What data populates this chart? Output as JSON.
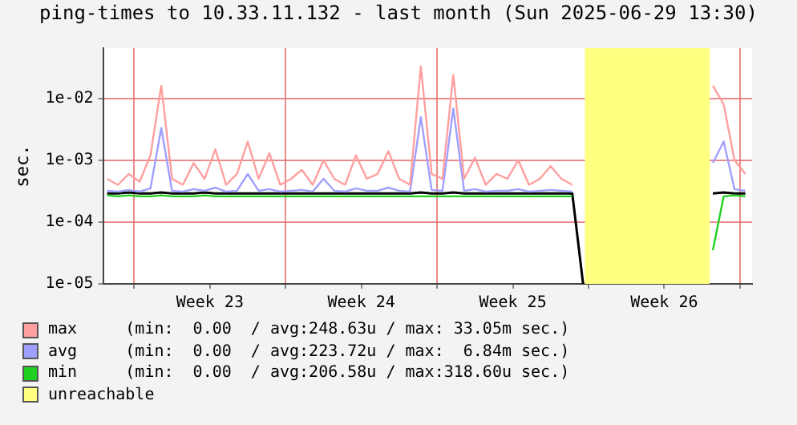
{
  "chart_data": {
    "type": "line",
    "title": "ping-times to 10.33.11.132 - last month (Sun 2025-06-29 13:30)",
    "ylabel": "sec.",
    "log": "y",
    "grid": true,
    "legend": "bottom",
    "marker": "none",
    "xlim": [
      "2025-05-30T13:30",
      "2025-06-29T13:30"
    ],
    "xticks": [
      {
        "value": "2025-06-01",
        "label": null
      },
      {
        "value": "2025-06-04T12:00",
        "label": "Week 23"
      },
      {
        "value": "2025-06-08",
        "label": null
      },
      {
        "value": "2025-06-11T12:00",
        "label": "Week 24"
      },
      {
        "value": "2025-06-15",
        "label": null
      },
      {
        "value": "2025-06-18T12:00",
        "label": "Week 25"
      },
      {
        "value": "2025-06-22",
        "label": null
      },
      {
        "value": "2025-06-25T12:00",
        "label": "Week 26"
      },
      {
        "value": "2025-06-29",
        "label": null
      }
    ],
    "ylim": [
      1e-05,
      0.065
    ],
    "yticks": [
      {
        "value": 1e-05,
        "label": "1e-05"
      },
      {
        "value": 0.0001,
        "label": "1e-04"
      },
      {
        "value": 0.001,
        "label": "1e-03"
      },
      {
        "value": 0.01,
        "label": "1e-02"
      }
    ],
    "x": [
      "2025-05-30T18:00",
      "2025-05-31T06:00",
      "2025-05-31T18:00",
      "2025-06-01T06:00",
      "2025-06-01T18:00",
      "2025-06-02T06:00",
      "2025-06-02T18:00",
      "2025-06-03T06:00",
      "2025-06-03T18:00",
      "2025-06-04T06:00",
      "2025-06-04T18:00",
      "2025-06-05T06:00",
      "2025-06-05T18:00",
      "2025-06-06T06:00",
      "2025-06-06T18:00",
      "2025-06-07T06:00",
      "2025-06-07T18:00",
      "2025-06-08T06:00",
      "2025-06-08T18:00",
      "2025-06-09T06:00",
      "2025-06-09T18:00",
      "2025-06-10T06:00",
      "2025-06-10T18:00",
      "2025-06-11T06:00",
      "2025-06-11T18:00",
      "2025-06-12T06:00",
      "2025-06-12T18:00",
      "2025-06-13T06:00",
      "2025-06-13T18:00",
      "2025-06-14T06:00",
      "2025-06-14T18:00",
      "2025-06-15T06:00",
      "2025-06-15T18:00",
      "2025-06-16T06:00",
      "2025-06-16T18:00",
      "2025-06-17T06:00",
      "2025-06-17T18:00",
      "2025-06-18T06:00",
      "2025-06-18T18:00",
      "2025-06-19T06:00",
      "2025-06-19T18:00",
      "2025-06-20T06:00",
      "2025-06-20T18:00",
      "2025-06-21T06:00",
      "2025-06-21T18:00",
      "2025-06-22T06:00",
      "2025-06-22T18:00",
      "2025-06-23T06:00",
      "2025-06-23T18:00",
      "2025-06-24T06:00",
      "2025-06-24T18:00",
      "2025-06-25T06:00",
      "2025-06-25T18:00",
      "2025-06-26T06:00",
      "2025-06-26T18:00",
      "2025-06-27T06:00",
      "2025-06-27T18:00",
      "2025-06-28T06:00",
      "2025-06-28T18:00",
      "2025-06-29T06:00"
    ],
    "series": [
      {
        "name": "max     (min:  0.00  / avg:248.63u / max: 33.05m sec.)",
        "color": "#ff9f9f",
        "values": [
          0.0005,
          0.0004,
          0.0006,
          0.00045,
          0.0012,
          0.016,
          0.0005,
          0.0004,
          0.0009,
          0.0005,
          0.0015,
          0.0004,
          0.0006,
          0.002,
          0.0005,
          0.0013,
          0.0004,
          0.0005,
          0.0007,
          0.0004,
          0.001,
          0.0005,
          0.0004,
          0.0012,
          0.0005,
          0.0006,
          0.0014,
          0.0005,
          0.0004,
          0.03305,
          0.0006,
          0.0005,
          0.024,
          0.0005,
          0.0011,
          0.0004,
          0.0006,
          0.0005,
          0.001,
          0.0004,
          0.0005,
          0.0008,
          0.0005,
          0.0004,
          null,
          null,
          null,
          null,
          null,
          null,
          null,
          null,
          null,
          null,
          null,
          null,
          0.016,
          0.008,
          0.001,
          0.0006
        ]
      },
      {
        "name": "avg     (min:  0.00  / avg:223.72u / max:  6.84m sec.)",
        "color": "#9f9fff",
        "values": [
          0.00032,
          0.00031,
          0.00033,
          0.00031,
          0.00035,
          0.0033,
          0.00032,
          0.00031,
          0.00034,
          0.00032,
          0.00036,
          0.00031,
          0.00032,
          0.0006,
          0.00032,
          0.00034,
          0.00031,
          0.00032,
          0.00033,
          0.00031,
          0.0005,
          0.00032,
          0.00031,
          0.00035,
          0.00032,
          0.00032,
          0.00036,
          0.00032,
          0.00031,
          0.005,
          0.00033,
          0.00032,
          0.00684,
          0.00032,
          0.00034,
          0.00031,
          0.00032,
          0.00032,
          0.00034,
          0.00031,
          0.00032,
          0.00033,
          0.00032,
          0.00031,
          null,
          null,
          null,
          null,
          null,
          null,
          null,
          null,
          null,
          null,
          null,
          null,
          0.0009,
          0.002,
          0.00034,
          0.00032
        ]
      },
      {
        "name": "min     (min:  0.00  / avg:206.58u / max:318.60u sec.)",
        "color": "#20d020",
        "values": [
          0.00027,
          0.00026,
          0.00027,
          0.00026,
          0.00026,
          0.00027,
          0.00026,
          0.00026,
          0.00026,
          0.00027,
          0.00026,
          0.00026,
          0.00026,
          0.00026,
          0.00026,
          0.00026,
          0.00026,
          0.00026,
          0.00026,
          0.00026,
          0.00026,
          0.00026,
          0.00026,
          0.00026,
          0.00026,
          0.00026,
          0.00026,
          0.00026,
          0.00026,
          0.00026,
          0.00026,
          0.00026,
          0.00026,
          0.00026,
          0.00026,
          0.00026,
          0.00026,
          0.00026,
          0.00026,
          0.00026,
          0.00026,
          0.00026,
          0.00026,
          0.00026,
          null,
          null,
          null,
          null,
          null,
          null,
          null,
          null,
          null,
          null,
          null,
          null,
          3.5e-05,
          0.00026,
          0.00027,
          0.00026
        ]
      },
      {
        "color": "#000000",
        "values": [
          0.00029,
          0.00029,
          0.0003,
          0.00029,
          0.00029,
          0.0003,
          0.00029,
          0.00029,
          0.00029,
          0.0003,
          0.00029,
          0.00029,
          0.00029,
          0.00029,
          0.00029,
          0.00029,
          0.00029,
          0.00029,
          0.00029,
          0.00029,
          0.00029,
          0.00029,
          0.00029,
          0.00029,
          0.00029,
          0.00029,
          0.00029,
          0.00029,
          0.00029,
          0.0003,
          0.00029,
          0.00029,
          0.0003,
          0.00029,
          0.00029,
          0.00029,
          0.00029,
          0.00029,
          0.00029,
          0.00029,
          0.00029,
          0.00029,
          0.00029,
          0.00029,
          1e-05,
          null,
          null,
          null,
          null,
          null,
          null,
          null,
          null,
          null,
          null,
          null,
          0.00029,
          0.0003,
          0.00029,
          0.00029
        ]
      }
    ],
    "bands": [
      {
        "axis": "x",
        "from": "2025-06-21T20:00",
        "to": "2025-06-27T14:30",
        "label": "unreachable",
        "color": "#ffff80"
      }
    ]
  }
}
